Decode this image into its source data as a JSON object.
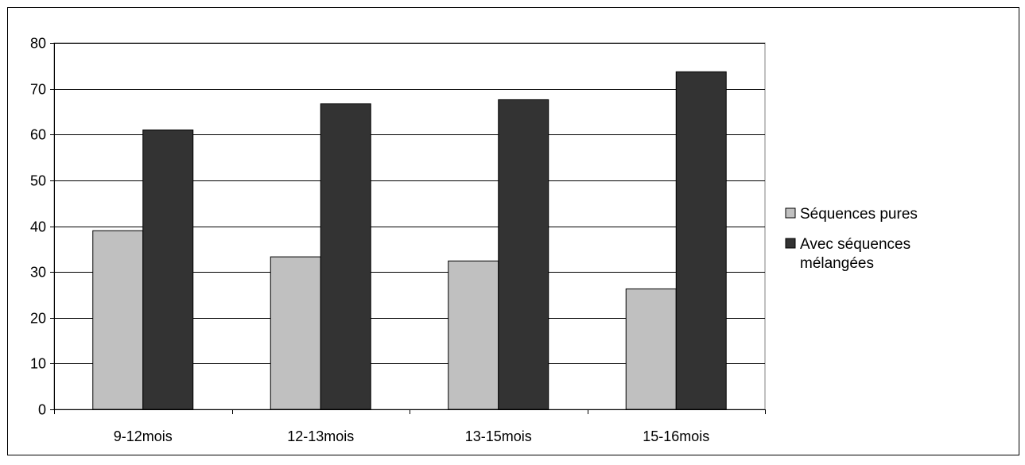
{
  "chart_data": {
    "type": "bar",
    "categories": [
      "9-12mois",
      "12-13mois",
      "13-15mois",
      "15-16mois"
    ],
    "series": [
      {
        "name": "Séquences pures",
        "values": [
          39,
          33.3,
          32.4,
          26.3
        ],
        "color": "#c0c0c0"
      },
      {
        "name": "Avec séquences mélangées",
        "values": [
          61,
          66.7,
          67.6,
          73.7
        ],
        "color": "#333333"
      }
    ],
    "ylim": [
      0,
      80
    ],
    "yticks": [
      0,
      10,
      20,
      30,
      40,
      50,
      60,
      70,
      80
    ],
    "grid": true,
    "legend": {
      "position": "right",
      "entries": [
        {
          "lines": [
            "Séquences pures"
          ]
        },
        {
          "lines": [
            "Avec séquences",
            "mélangées"
          ]
        }
      ]
    }
  }
}
